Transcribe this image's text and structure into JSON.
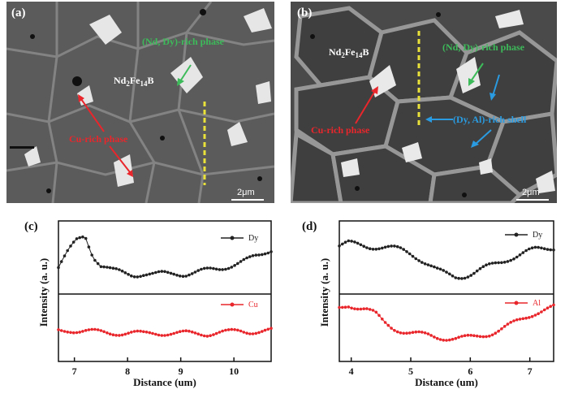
{
  "figure": {
    "panels": {
      "a": {
        "letter": "(a)",
        "labels": {
          "matrix": "Nd2Fe14B",
          "nd_dy_rich": "(Nd, Dy)-rich phase",
          "cu_rich": "Cu-rich phase"
        },
        "scale_bar": "2μm"
      },
      "b": {
        "letter": "(b)",
        "labels": {
          "matrix": "Nd2Fe14B",
          "nd_dy_rich": "(Nd, Dy)-rich phase",
          "cu_rich": "Cu-rich phase",
          "dy_al_shell": "(Dy, Al)-rich shell"
        },
        "scale_bar": "2μm"
      },
      "c": {
        "letter": "(c)"
      },
      "d": {
        "letter": "(d)"
      }
    },
    "colors": {
      "dy_series": "#222222",
      "cu_series": "#e8262b",
      "al_series": "#e8262b",
      "green_label": "#3dbb5a",
      "red_label": "#e8262b",
      "blue_label": "#2a9be0",
      "yellow_line": "#e8e23a"
    }
  },
  "chart_data": [
    {
      "type": "line",
      "panel": "(c)",
      "xlabel": "Distance (um)",
      "ylabel": "Intensity (a. u.)",
      "xlim": [
        6.7,
        10.7
      ],
      "xticks": [
        7,
        8,
        9,
        10
      ],
      "series": [
        {
          "name": "Dy",
          "x": [
            6.7,
            6.9,
            7.05,
            7.2,
            7.35,
            7.5,
            7.7,
            7.9,
            8.1,
            8.3,
            8.5,
            8.7,
            8.9,
            9.1,
            9.3,
            9.5,
            9.7,
            9.9,
            10.1,
            10.3,
            10.5,
            10.7
          ],
          "y": [
            0.35,
            0.62,
            0.8,
            0.88,
            0.55,
            0.38,
            0.3,
            0.27,
            0.24,
            0.25,
            0.23,
            0.25,
            0.26,
            0.25,
            0.27,
            0.3,
            0.33,
            0.38,
            0.43,
            0.48,
            0.55,
            0.65
          ]
        },
        {
          "name": "Cu",
          "x": [
            6.7,
            6.9,
            7.1,
            7.3,
            7.5,
            7.7,
            7.9,
            8.1,
            8.3,
            8.5,
            8.7,
            8.9,
            9.1,
            9.3,
            9.5,
            9.7,
            9.9,
            10.1,
            10.3,
            10.5,
            10.7
          ],
          "y": [
            0.45,
            0.46,
            0.44,
            0.43,
            0.42,
            0.41,
            0.4,
            0.4,
            0.39,
            0.41,
            0.4,
            0.39,
            0.4,
            0.4,
            0.39,
            0.41,
            0.42,
            0.44,
            0.43,
            0.44,
            0.45
          ]
        }
      ]
    },
    {
      "type": "line",
      "panel": "(d)",
      "xlabel": "Distance (um)",
      "ylabel": "Intensity (a. u.)",
      "xlim": [
        3.8,
        7.4
      ],
      "xticks": [
        4,
        5,
        6,
        7
      ],
      "series": [
        {
          "name": "Dy",
          "x": [
            3.8,
            3.95,
            4.1,
            4.25,
            4.4,
            4.55,
            4.7,
            4.85,
            5.0,
            5.15,
            5.3,
            5.45,
            5.6,
            5.75,
            5.9,
            6.05,
            6.2,
            6.35,
            6.5,
            6.65,
            6.8,
            6.95,
            7.1,
            7.25,
            7.4
          ],
          "y": [
            0.7,
            0.74,
            0.72,
            0.7,
            0.69,
            0.68,
            0.66,
            0.63,
            0.58,
            0.5,
            0.4,
            0.3,
            0.24,
            0.2,
            0.22,
            0.26,
            0.32,
            0.38,
            0.44,
            0.5,
            0.55,
            0.6,
            0.64,
            0.66,
            0.68
          ]
        },
        {
          "name": "Al",
          "x": [
            3.8,
            3.95,
            4.1,
            4.25,
            4.4,
            4.55,
            4.7,
            4.85,
            5.0,
            5.15,
            5.3,
            5.45,
            5.6,
            5.75,
            5.9,
            6.05,
            6.2,
            6.35,
            6.5,
            6.65,
            6.8,
            6.95,
            7.1,
            7.25,
            7.4
          ],
          "y": [
            0.86,
            0.92,
            0.88,
            0.84,
            0.76,
            0.6,
            0.5,
            0.44,
            0.4,
            0.38,
            0.36,
            0.33,
            0.31,
            0.3,
            0.31,
            0.33,
            0.36,
            0.4,
            0.46,
            0.54,
            0.62,
            0.7,
            0.78,
            0.84,
            0.88
          ]
        }
      ]
    }
  ]
}
